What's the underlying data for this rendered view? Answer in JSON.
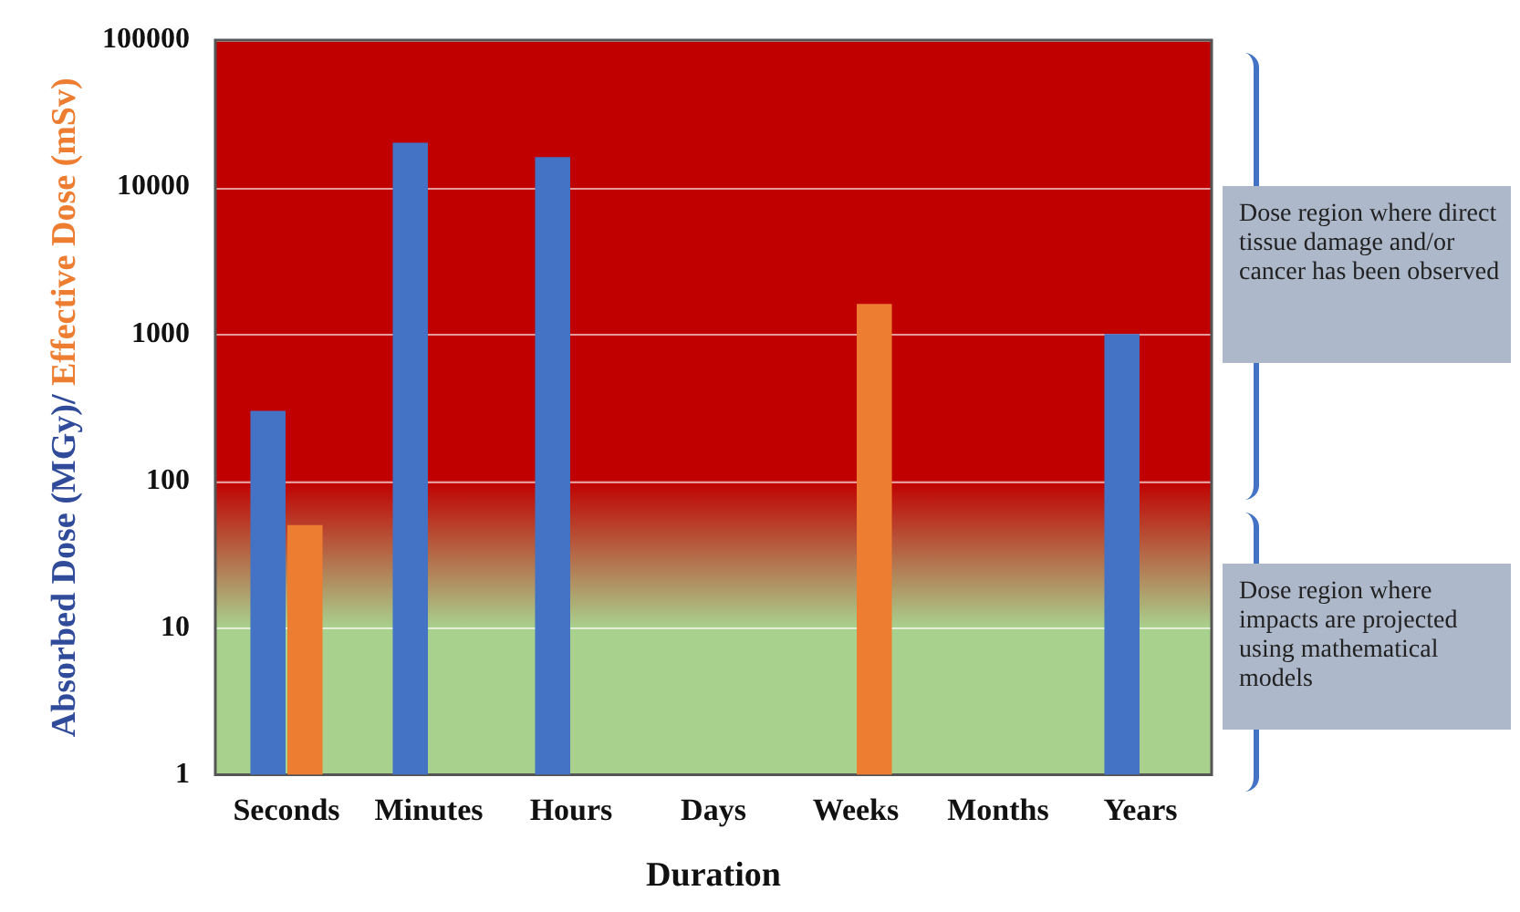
{
  "chart_data": {
    "type": "bar",
    "xlabel": "Duration",
    "ylabel": "Absorbed Dose (MGy)/ Effective Dose (mSv)",
    "categories": [
      "Seconds",
      "Minutes",
      "Hours",
      "Days",
      "Weeks",
      "Months",
      "Years"
    ],
    "series": [
      {
        "color": "#4472c4",
        "values": [
          300,
          20000,
          16000,
          null,
          null,
          null,
          1000
        ]
      },
      {
        "color": "#ed7d31",
        "values": [
          50,
          null,
          null,
          null,
          1600,
          null,
          null
        ]
      }
    ],
    "log": "y",
    "ylim": [
      1,
      100000
    ],
    "yticks": [
      1,
      10,
      100,
      1000,
      10000,
      100000
    ],
    "grid": "y",
    "legend": false,
    "bands": [
      {
        "axis": "y",
        "from": 1,
        "to": 10,
        "color": "#a9d18e"
      },
      {
        "axis": "y",
        "from": 10,
        "to": 100
      },
      {
        "axis": "y",
        "from": 100,
        "to": 100000,
        "color": "#c00000"
      }
    ],
    "annotations": [
      "Dose region where direct tissue damage and/or cancer has been observed",
      "Dose region where impacts are projected using mathematical models"
    ]
  }
}
